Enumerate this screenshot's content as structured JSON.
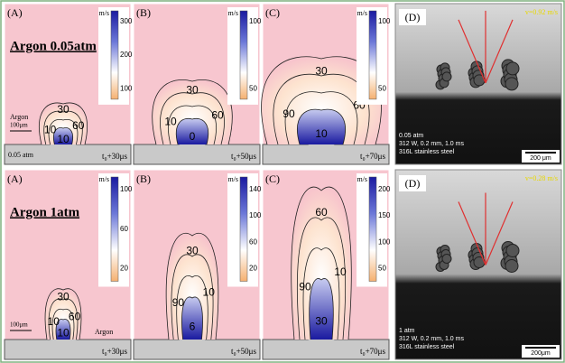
{
  "rows": [
    {
      "title": "Argon 0.05atm",
      "gas_label": "Argon",
      "scale": "100μm",
      "pressure": "0.05 atm",
      "panels": [
        {
          "label": "(A)",
          "unit": "m/s",
          "colorbar_ticks": [
            "300",
            "200",
            "100"
          ],
          "contours": [
            "30",
            "60",
            "10",
            "10"
          ],
          "time": "t₀+30μs"
        },
        {
          "label": "(B)",
          "unit": "m/s",
          "colorbar_ticks": [
            "100",
            "50"
          ],
          "contours": [
            "30",
            "60",
            "10",
            "0"
          ],
          "time": "t₀+50μs"
        },
        {
          "label": "(C)",
          "unit": "m/s",
          "colorbar_ticks": [
            "100",
            "50"
          ],
          "contours": [
            "30",
            "60",
            "90",
            "10"
          ],
          "time": "t₀+70μs"
        }
      ],
      "photo": {
        "label": "(D)",
        "speed": "v=0.92 m/s",
        "lines": [
          "0.05 atm",
          "312 W, 0.2 mm, 1.0 ms",
          "316L stainless steel"
        ],
        "scale": "200 μm"
      }
    },
    {
      "title": "Argon 1atm",
      "gas_label": "Argon",
      "scale": "100μm",
      "panels": [
        {
          "label": "(A)",
          "unit": "m/s",
          "colorbar_ticks": [
            "100",
            "60",
            "20"
          ],
          "contours": [
            "30",
            "60",
            "10",
            "10"
          ],
          "time": "t₀+30μs"
        },
        {
          "label": "(B)",
          "unit": "m/s",
          "colorbar_ticks": [
            "140",
            "100",
            "60",
            "20"
          ],
          "contours": [
            "30",
            "10",
            "90",
            "6"
          ],
          "time": "t₀+50μs"
        },
        {
          "label": "(C)",
          "unit": "m/s",
          "colorbar_ticks": [
            "200",
            "150",
            "100",
            "50"
          ],
          "contours": [
            "60",
            "10",
            "90",
            "30"
          ],
          "time": "t₀+70μs"
        }
      ],
      "photo": {
        "label": "(D)",
        "speed": "v=0.28 m/s",
        "lines": [
          "1 atm",
          "312 W, 0.2 mm, 1.0 ms",
          "316L stainless steel"
        ],
        "scale": "200μm"
      }
    }
  ]
}
